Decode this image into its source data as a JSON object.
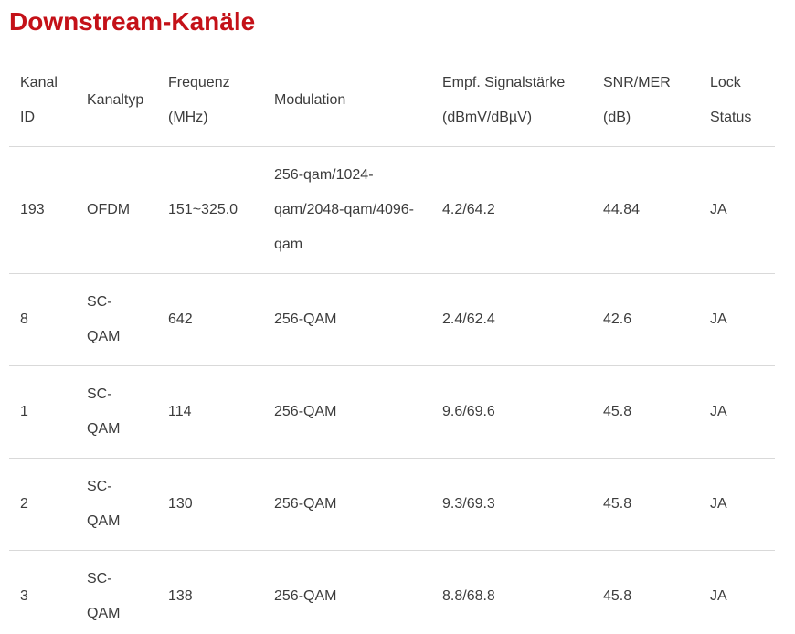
{
  "page": {
    "title": "Downstream-Kanäle",
    "accent_color": "#c41118",
    "text_color": "#3c3c3c",
    "divider_color": "#d9d9d9"
  },
  "table": {
    "columns": [
      {
        "id": "kanal_id",
        "label": "Kanal ID"
      },
      {
        "id": "kanaltyp",
        "label": "Kanaltyp"
      },
      {
        "id": "frequenz",
        "label": "Frequenz (MHz)"
      },
      {
        "id": "modulation",
        "label": "Modulation"
      },
      {
        "id": "signal",
        "label": "Empf. Signalstärke (dBmV/dBµV)"
      },
      {
        "id": "snr",
        "label": "SNR/MER (dB)"
      },
      {
        "id": "lock",
        "label": "Lock Status"
      }
    ],
    "rows": [
      {
        "kanal_id": "193",
        "kanaltyp": "OFDM",
        "frequenz": "151~325.0",
        "modulation": "256-qam/1024-qam/2048-qam/4096-qam",
        "signal": "4.2/64.2",
        "snr": "44.84",
        "lock": "JA"
      },
      {
        "kanal_id": "8",
        "kanaltyp": "SC-QAM",
        "frequenz": "642",
        "modulation": "256-QAM",
        "signal": "2.4/62.4",
        "snr": "42.6",
        "lock": "JA"
      },
      {
        "kanal_id": "1",
        "kanaltyp": "SC-QAM",
        "frequenz": "114",
        "modulation": "256-QAM",
        "signal": "9.6/69.6",
        "snr": "45.8",
        "lock": "JA"
      },
      {
        "kanal_id": "2",
        "kanaltyp": "SC-QAM",
        "frequenz": "130",
        "modulation": "256-QAM",
        "signal": "9.3/69.3",
        "snr": "45.8",
        "lock": "JA"
      },
      {
        "kanal_id": "3",
        "kanaltyp": "SC-QAM",
        "frequenz": "138",
        "modulation": "256-QAM",
        "signal": "8.8/68.8",
        "snr": "45.8",
        "lock": "JA"
      }
    ]
  }
}
